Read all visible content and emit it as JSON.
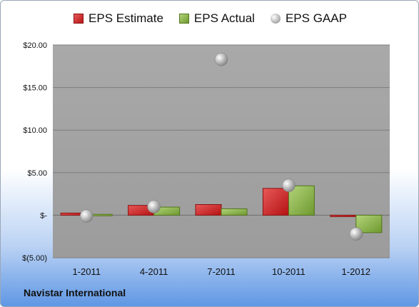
{
  "company": "Navistar International",
  "colors": {
    "estimate": "#c0181c",
    "actual": "#7ea83a",
    "gaap": "#a6a6a6",
    "plot_bg": "#a6a6a6"
  },
  "chart_data": {
    "type": "bar",
    "categories": [
      "1-2011",
      "4-2011",
      "7-2011",
      "10-2011",
      "1-2012"
    ],
    "series": [
      {
        "name": "EPS Estimate",
        "values": [
          0.25,
          1.15,
          1.25,
          3.15,
          -0.15
        ]
      },
      {
        "name": "EPS Actual",
        "values": [
          0.1,
          0.95,
          0.75,
          3.45,
          -2.05
        ]
      },
      {
        "name": "EPS GAAP",
        "values": [
          -0.1,
          1.0,
          18.3,
          3.5,
          -2.2
        ],
        "marker": "circle"
      }
    ],
    "ylim": [
      -5,
      20
    ],
    "yticks": [
      20,
      15,
      10,
      5,
      0,
      -5
    ],
    "ytick_labels": [
      "$20.00",
      "$15.00",
      "$10.00",
      "$5.00",
      "$-",
      "$(5.00)"
    ],
    "grid": true,
    "legend": "top"
  }
}
